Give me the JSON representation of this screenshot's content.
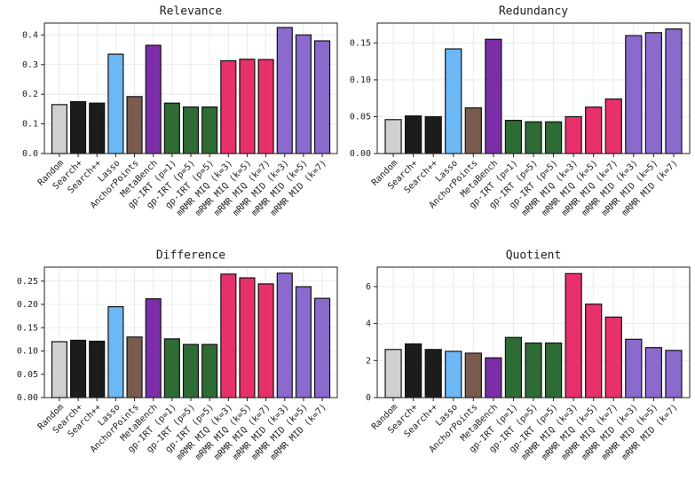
{
  "chart_data": [
    {
      "type": "bar",
      "title": "Relevance",
      "categories": [
        "Random",
        "Search+",
        "Search++",
        "Lasso",
        "AnchorPoints",
        "MetaBench",
        "gp-IRT (p=1)",
        "gp-IRT (p=5)",
        "gp-IRT (p=5)",
        "mRMR MIQ (k=3)",
        "mRMR MIQ (k=5)",
        "mRMR MIQ (k=7)",
        "mRMR MID (k=3)",
        "mRMR MID (k=5)",
        "mRMR MID (k=7)"
      ],
      "values": [
        0.165,
        0.175,
        0.17,
        0.335,
        0.192,
        0.365,
        0.17,
        0.157,
        0.157,
        0.313,
        0.318,
        0.317,
        0.425,
        0.4,
        0.38
      ],
      "colors": [
        "#d0d0d0",
        "#1c1c1c",
        "#1c1c1c",
        "#6cb8f4",
        "#7a5c4e",
        "#7b2ea8",
        "#2e6b35",
        "#2e6b35",
        "#2e6b35",
        "#e8306a",
        "#e8306a",
        "#e8306a",
        "#8a6acc",
        "#8a6acc",
        "#8a6acc"
      ],
      "ylim": [
        0,
        0.44
      ],
      "yticks": [
        {
          "value": 0,
          "label": "0.0"
        },
        0.1,
        0.2,
        0.3,
        0.4
      ],
      "grid": true
    },
    {
      "type": "bar",
      "title": "Redundancy",
      "categories": [
        "Random",
        "Search+",
        "Search++",
        "Lasso",
        "AnchorPoints",
        "MetaBench",
        "gp-IRT (p=1)",
        "gp-IRT (p=5)",
        "gp-IRT (p=5)",
        "mRMR MIQ (k=3)",
        "mRMR MIQ (k=5)",
        "mRMR MIQ (k=7)",
        "mRMR MID (k=3)",
        "mRMR MID (k=5)",
        "mRMR MID (k=7)"
      ],
      "values": [
        0.046,
        0.051,
        0.05,
        0.142,
        0.062,
        0.155,
        0.045,
        0.043,
        0.043,
        0.05,
        0.063,
        0.074,
        0.16,
        0.164,
        0.169
      ],
      "colors": [
        "#d0d0d0",
        "#1c1c1c",
        "#1c1c1c",
        "#6cb8f4",
        "#7a5c4e",
        "#7b2ea8",
        "#2e6b35",
        "#2e6b35",
        "#2e6b35",
        "#e8306a",
        "#e8306a",
        "#e8306a",
        "#8a6acc",
        "#8a6acc",
        "#8a6acc"
      ],
      "ylim": [
        0,
        0.177
      ],
      "yticks": [
        {
          "value": 0,
          "label": "0.00"
        },
        0.05,
        {
          "value": 0.1,
          "label": "0.10"
        },
        0.15
      ],
      "grid": true
    },
    {
      "type": "bar",
      "title": "Difference",
      "categories": [
        "Random",
        "Search+",
        "Search++",
        "Lasso",
        "AnchorPoints",
        "MetaBench",
        "gp-IRT (p=1)",
        "gp-IRT (p=5)",
        "gp-IRT (p=5)",
        "mRMR MIQ (k=3)",
        "mRMR MIQ (k=5)",
        "mRMR MIQ (k=7)",
        "mRMR MID (k=3)",
        "mRMR MID (k=5)",
        "mRMR MID (k=7)"
      ],
      "values": [
        0.12,
        0.123,
        0.121,
        0.195,
        0.13,
        0.212,
        0.126,
        0.114,
        0.114,
        0.265,
        0.257,
        0.244,
        0.267,
        0.238,
        0.213
      ],
      "colors": [
        "#d0d0d0",
        "#1c1c1c",
        "#1c1c1c",
        "#6cb8f4",
        "#7a5c4e",
        "#7b2ea8",
        "#2e6b35",
        "#2e6b35",
        "#2e6b35",
        "#e8306a",
        "#e8306a",
        "#e8306a",
        "#8a6acc",
        "#8a6acc",
        "#8a6acc"
      ],
      "ylim": [
        0,
        0.28
      ],
      "yticks": [
        {
          "value": 0,
          "label": "0.00"
        },
        0.05,
        {
          "value": 0.1,
          "label": "0.10"
        },
        0.15,
        {
          "value": 0.2,
          "label": "0.20"
        },
        0.25
      ],
      "grid": true
    },
    {
      "type": "bar",
      "title": "Quotient",
      "categories": [
        "Random",
        "Search+",
        "Search++",
        "Lasso",
        "AnchorPoints",
        "MetaBench",
        "gp-IRT (p=1)",
        "gp-IRT (p=5)",
        "gp-IRT (p=5)",
        "mRMR MIQ (k=3)",
        "mRMR MIQ (k=5)",
        "mRMR MIQ (k=7)",
        "mRMR MID (k=3)",
        "mRMR MID (k=5)",
        "mRMR MID (k=7)"
      ],
      "values": [
        2.6,
        2.9,
        2.6,
        2.5,
        2.4,
        2.15,
        3.25,
        2.95,
        2.95,
        6.7,
        5.05,
        4.35,
        3.15,
        2.7,
        2.55
      ],
      "colors": [
        "#d0d0d0",
        "#1c1c1c",
        "#1c1c1c",
        "#6cb8f4",
        "#7a5c4e",
        "#7b2ea8",
        "#2e6b35",
        "#2e6b35",
        "#2e6b35",
        "#e8306a",
        "#e8306a",
        "#e8306a",
        "#8a6acc",
        "#8a6acc",
        "#8a6acc"
      ],
      "ylim": [
        0,
        7.05
      ],
      "yticks": [
        0,
        2,
        4,
        6
      ],
      "grid": true
    }
  ]
}
